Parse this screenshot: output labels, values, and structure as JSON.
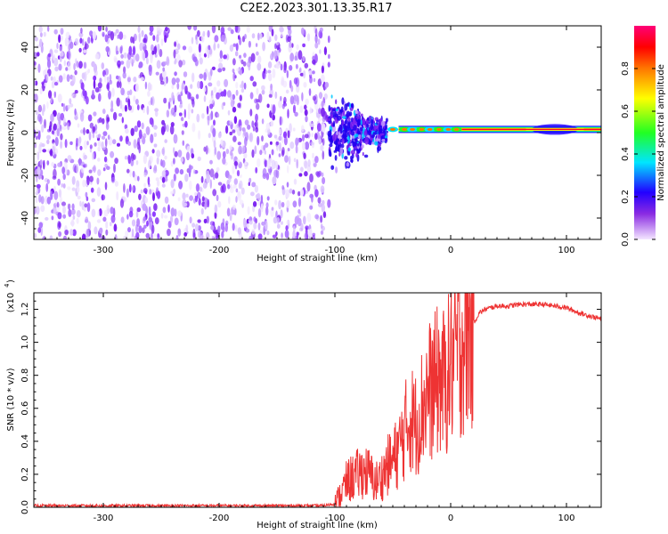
{
  "title": "C2E2.2023.301.13.35.R17",
  "chart_data": [
    {
      "type": "heatmap",
      "xlabel": "Height of straight line (km)",
      "ylabel": "Frequency (Hz)",
      "xlim": [
        -360,
        130
      ],
      "ylim": [
        -50,
        50
      ],
      "xticks": [
        -300,
        -200,
        -100,
        0,
        100
      ],
      "yticks": [
        -40,
        -20,
        0,
        20,
        40
      ],
      "colorbar": {
        "label": "Normalized spectral amplitude",
        "range": [
          0.0,
          1.0
        ],
        "ticks": [
          "0.0",
          "0.2",
          "0.4",
          "0.6",
          "0.8"
        ]
      },
      "regions": [
        {
          "x_range": [
            -360,
            -105
          ],
          "freq_range": [
            -50,
            50
          ],
          "amplitude": 0.1,
          "pattern": "noise"
        },
        {
          "x_range": [
            -105,
            -55
          ],
          "freq_range": [
            -20,
            20
          ],
          "amplitude": 0.35,
          "pattern": "noise"
        },
        {
          "x_range": [
            -55,
            130
          ],
          "center_freq_hz": 1.5,
          "amplitude": 1.0,
          "pattern": "narrow band"
        }
      ]
    },
    {
      "type": "line",
      "xlabel": "Height of straight line (km)",
      "ylabel": "SNR (10 * v/v)",
      "scale_label": "(x10",
      "scale_exponent": "4",
      "xlim": [
        -360,
        130
      ],
      "ylim": [
        0,
        1.3
      ],
      "xticks": [
        -300,
        -200,
        -100,
        0,
        100
      ],
      "yticks": [
        0.0,
        0.2,
        0.4,
        0.6,
        0.8,
        1.0,
        1.2
      ],
      "series": [
        {
          "color": "#ee3333",
          "x": [
            -360,
            -200,
            -110,
            -100,
            -95,
            -90,
            -85,
            -80,
            -75,
            -70,
            -65,
            -60,
            -55,
            -50,
            -45,
            -40,
            -35,
            -30,
            -25,
            -20,
            -15,
            -10,
            -5,
            0,
            5,
            10,
            15,
            20,
            25,
            30,
            40,
            50,
            60,
            70,
            80,
            90,
            100,
            110,
            120,
            130
          ],
          "y": [
            0.01,
            0.01,
            0.01,
            0.02,
            0.08,
            0.15,
            0.18,
            0.2,
            0.22,
            0.2,
            0.15,
            0.18,
            0.25,
            0.28,
            0.35,
            0.45,
            0.55,
            0.5,
            0.6,
            0.7,
            0.72,
            0.78,
            0.75,
            0.85,
            0.95,
            1.02,
            1.08,
            1.12,
            1.18,
            1.2,
            1.22,
            1.22,
            1.23,
            1.23,
            1.23,
            1.22,
            1.21,
            1.18,
            1.16,
            1.14
          ]
        }
      ]
    }
  ]
}
